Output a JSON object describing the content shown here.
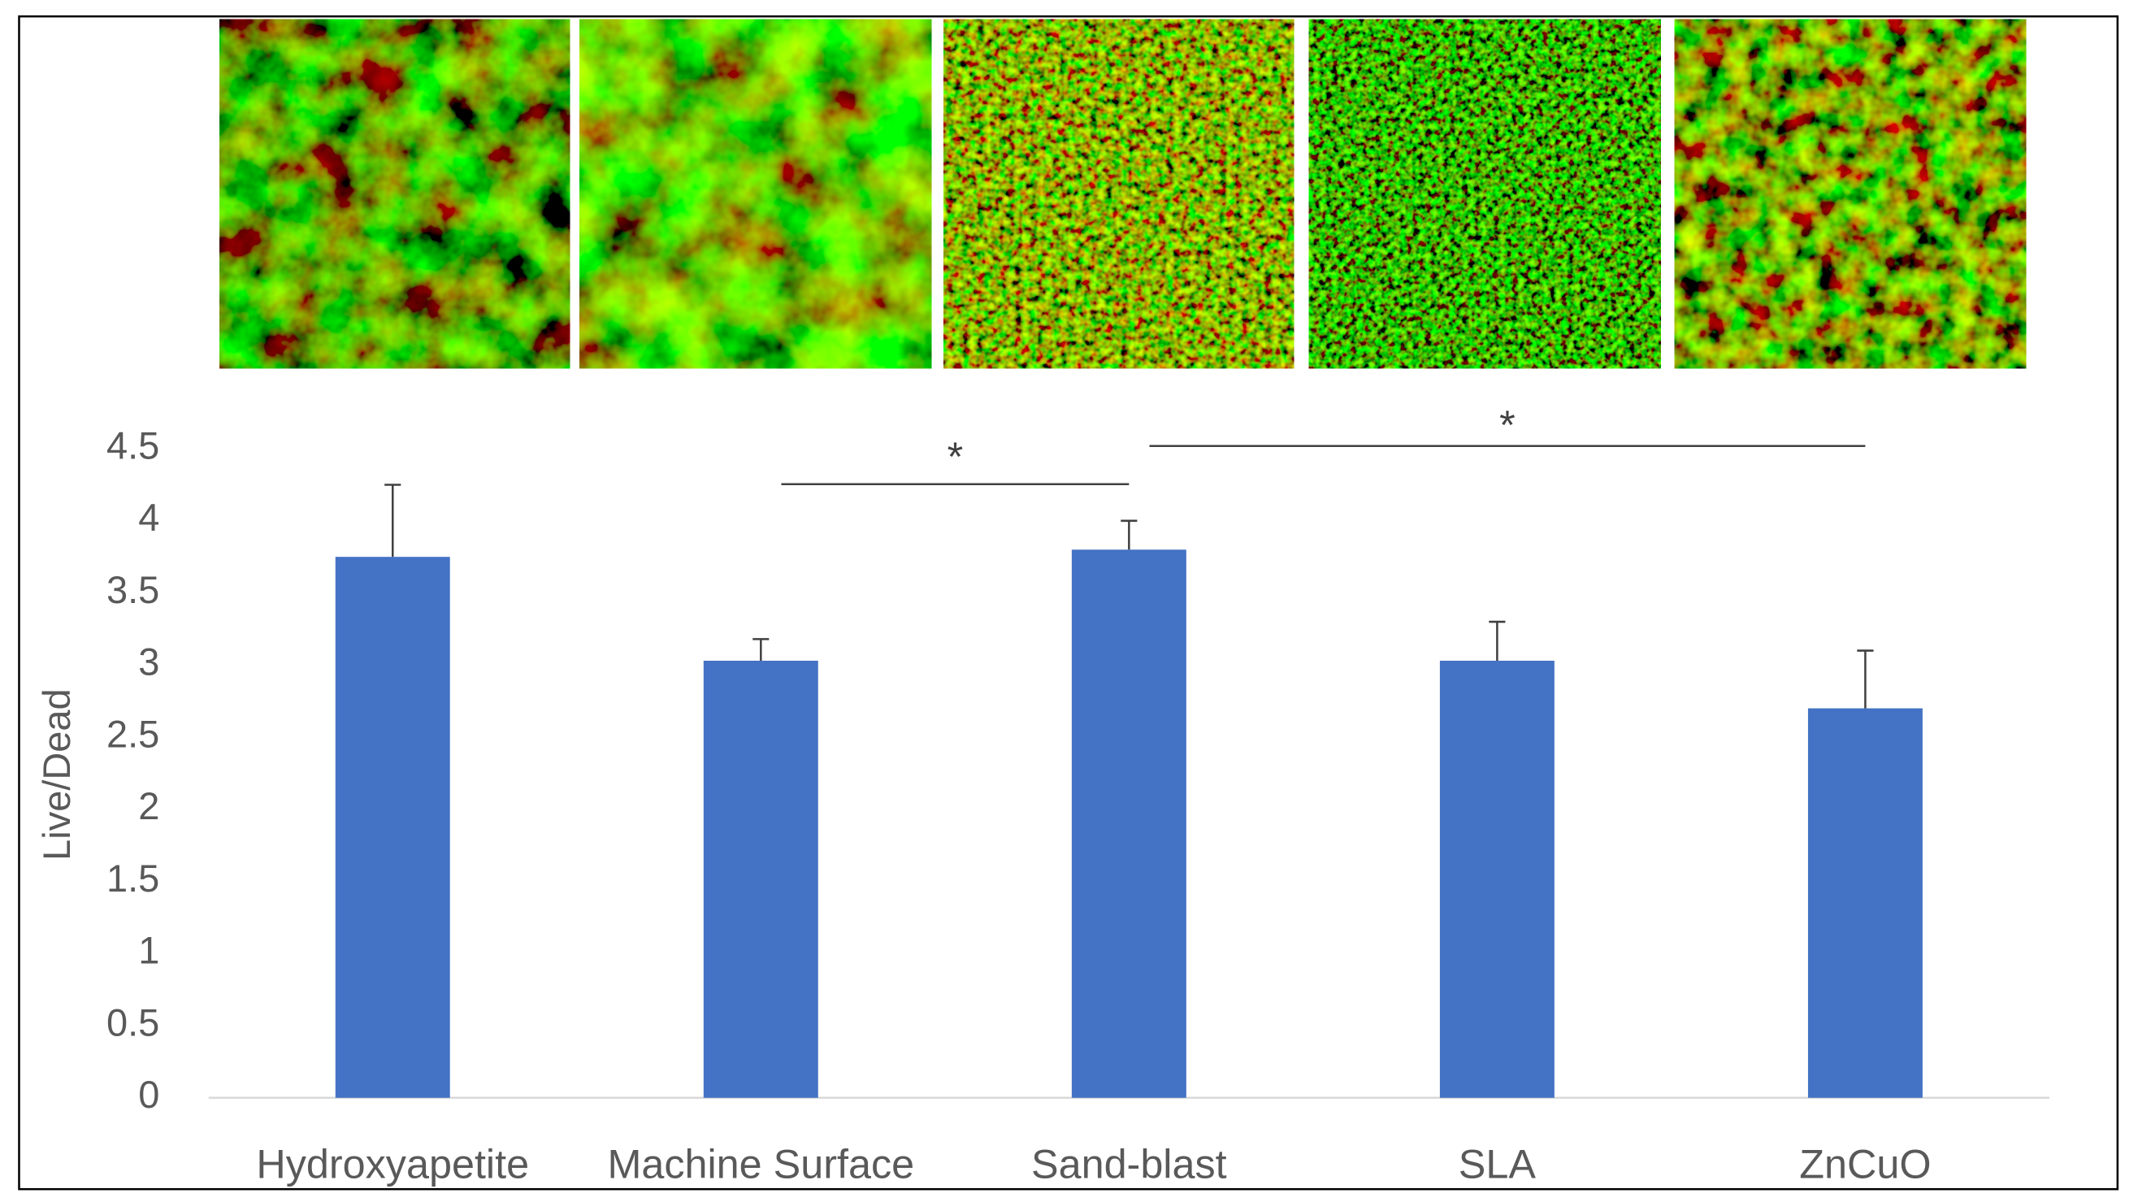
{
  "chart_data": {
    "type": "bar",
    "y_label": "Live/Dead",
    "categories": [
      "Hydroxyapetite",
      "Machine Surface",
      "Sand-blast",
      "SLA",
      "ZnCuO"
    ],
    "values": [
      3.75,
      3.03,
      3.8,
      3.03,
      2.7
    ],
    "errors": [
      0.5,
      0.15,
      0.2,
      0.27,
      0.4
    ],
    "color": "#4472c4",
    "ylim": [
      0,
      4.5
    ],
    "yticks": [
      0,
      0.5,
      1,
      1.5,
      2,
      2.5,
      3,
      3.5,
      4,
      4.5
    ],
    "annotations": [
      {
        "label": "*"
      },
      {
        "label": "*"
      }
    ]
  }
}
